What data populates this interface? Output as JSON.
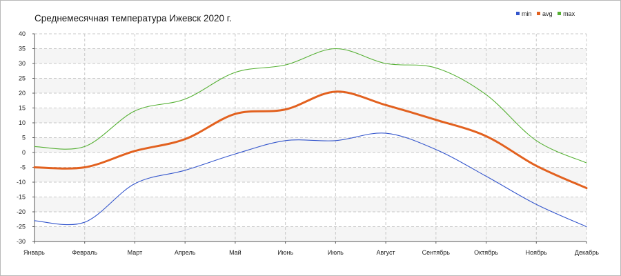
{
  "chart_data": {
    "type": "line",
    "title": "Среднемесячная температура Ижевск  2020 г.",
    "categories": [
      "Январь",
      "Февраль",
      "Март",
      "Апрель",
      "Май",
      "Июнь",
      "Июль",
      "Август",
      "Сентябрь",
      "Октябрь",
      "Ноябрь",
      "Декабрь"
    ],
    "series": [
      {
        "name": "min",
        "color": "#3355cc",
        "values": [
          -23,
          -23.5,
          -10.5,
          -6,
          -0.5,
          4,
          4,
          6.5,
          1,
          -8,
          -17.5,
          -25
        ]
      },
      {
        "name": "avg",
        "color": "#e2611f",
        "values": [
          -5,
          -5,
          0.5,
          4.5,
          13,
          14.5,
          20.5,
          16,
          11,
          5.5,
          -4.5,
          -12
        ]
      },
      {
        "name": "max",
        "color": "#55b033",
        "values": [
          2,
          2,
          14,
          18,
          27,
          29.5,
          35,
          30,
          28.5,
          19.5,
          4,
          -3.5
        ]
      }
    ],
    "ylim": [
      -30,
      40
    ],
    "yticks": [
      -30,
      -25,
      -20,
      -15,
      -10,
      -5,
      0,
      5,
      10,
      15,
      20,
      25,
      30,
      35,
      40
    ],
    "xlabel": "",
    "ylabel": "",
    "grid": true,
    "legend_position": "top-right"
  }
}
